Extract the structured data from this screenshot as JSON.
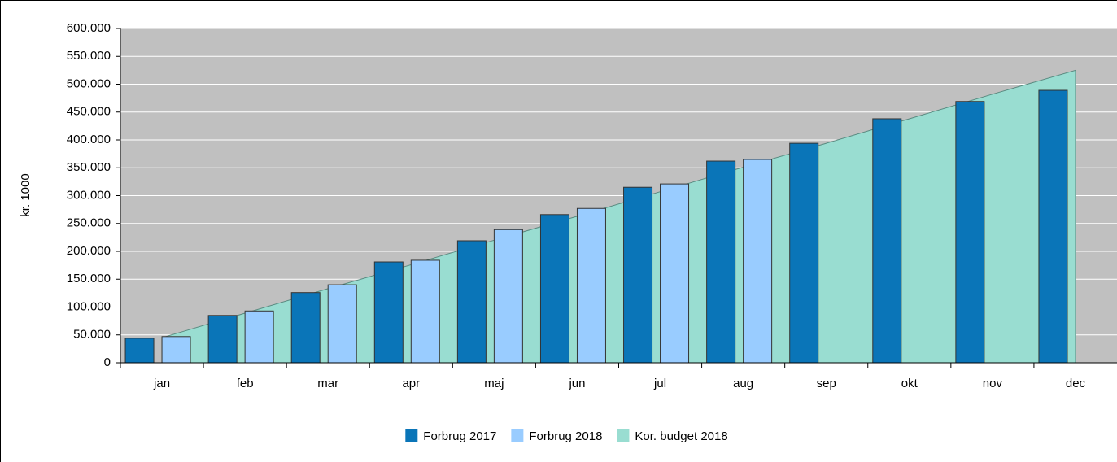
{
  "chart_data": {
    "type": "bar",
    "y_label": "kr. 1000",
    "categories": [
      "jan",
      "feb",
      "mar",
      "apr",
      "maj",
      "jun",
      "jul",
      "aug",
      "sep",
      "okt",
      "nov",
      "dec"
    ],
    "series": [
      {
        "name": "Forbrug 2017",
        "color": "#0a75b8",
        "kind": "bar",
        "values": [
          44000,
          85000,
          126000,
          181000,
          219000,
          266000,
          315000,
          362000,
          394000,
          438000,
          469000,
          489000
        ]
      },
      {
        "name": "Forbrug 2018",
        "color": "#99ccff",
        "kind": "bar",
        "values": [
          47000,
          93000,
          140000,
          184000,
          239000,
          277000,
          321000,
          365000,
          null,
          null,
          null,
          null
        ]
      },
      {
        "name": "Kor. budget 2018",
        "color": "#99ddd1",
        "kind": "area",
        "values": [
          45000,
          89000,
          133000,
          176000,
          220000,
          263000,
          307000,
          351000,
          394000,
          438000,
          482000,
          525000
        ]
      }
    ],
    "ylim": [
      0,
      600000
    ],
    "yticks": [
      0,
      {
        "value": 50000,
        "label": "50.000"
      },
      {
        "value": 100000,
        "label": "100.000"
      },
      {
        "value": 150000,
        "label": "150.000"
      },
      {
        "value": 200000,
        "label": "200.000"
      },
      {
        "value": 250000,
        "label": "250.000"
      },
      {
        "value": 300000,
        "label": "300.000"
      },
      {
        "value": 350000,
        "label": "350.000"
      },
      {
        "value": 400000,
        "label": "400.000"
      },
      {
        "value": 450000,
        "label": "450.000"
      },
      {
        "value": 500000,
        "label": "500.000"
      },
      {
        "value": 550000,
        "label": "550.000"
      },
      {
        "value": 600000,
        "label": "600.000"
      }
    ],
    "grid": true,
    "legend": "bottom"
  }
}
